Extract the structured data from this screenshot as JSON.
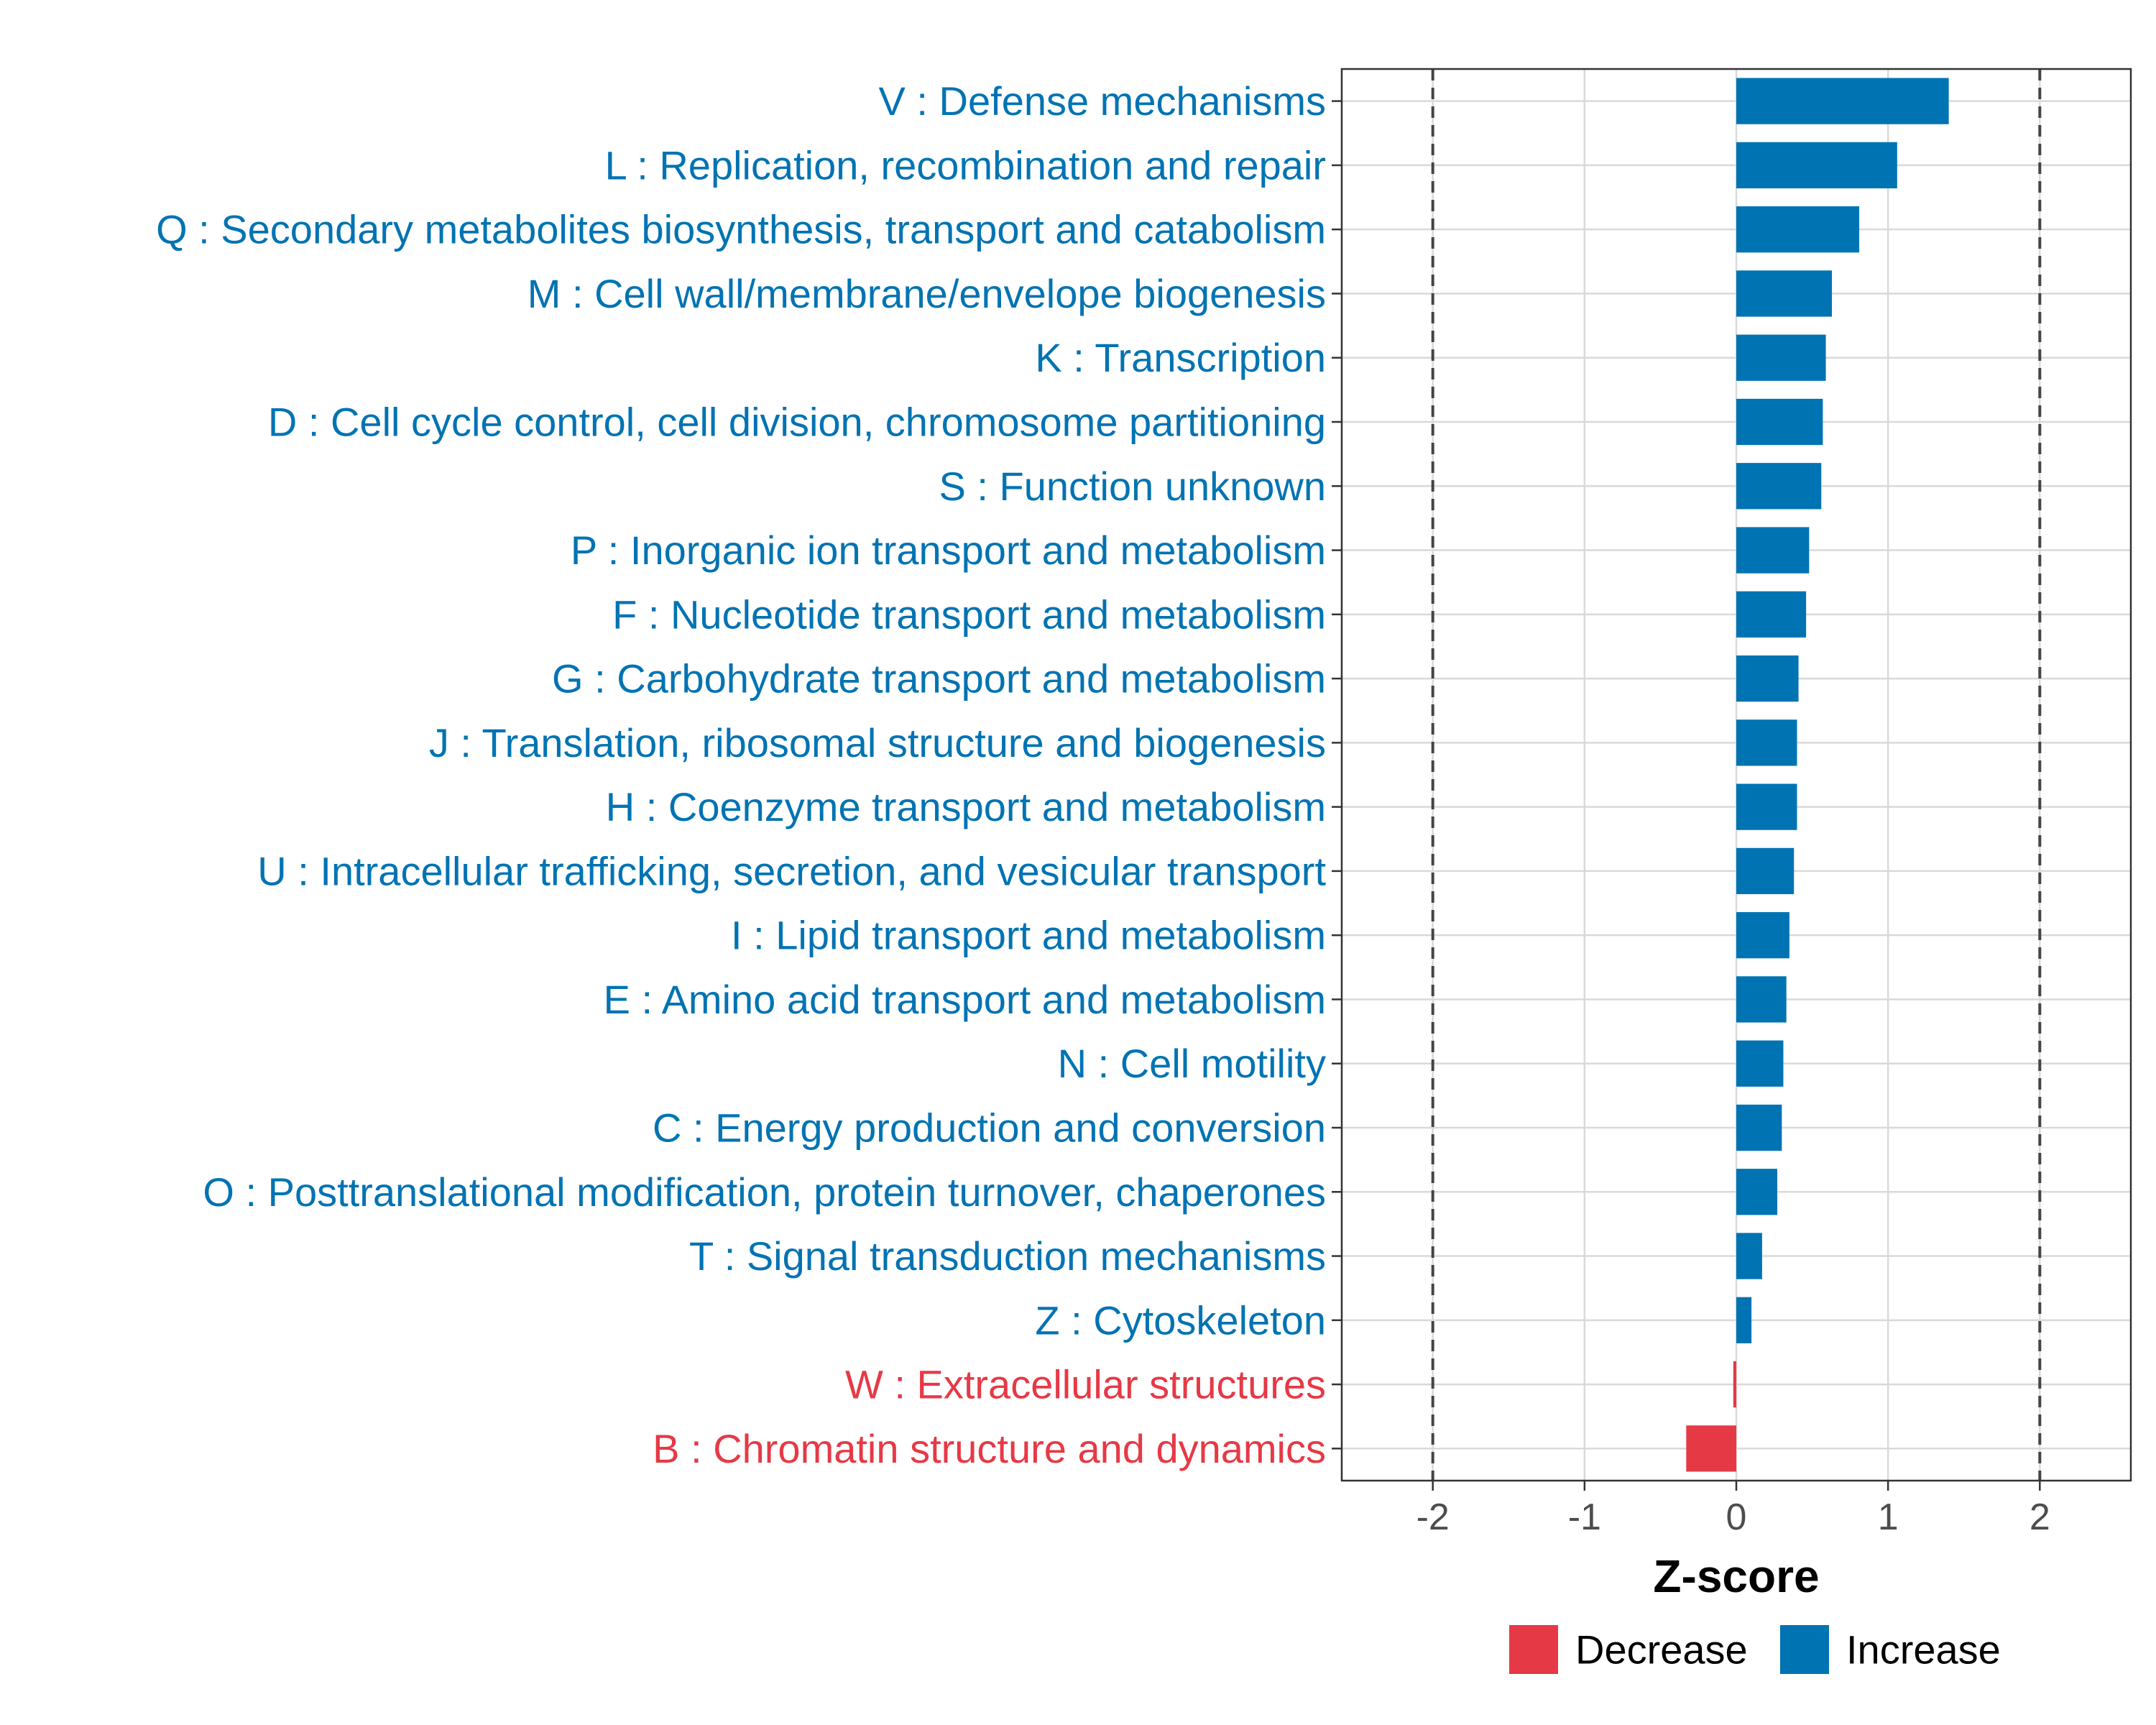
{
  "chart_data": {
    "type": "bar",
    "orientation": "horizontal",
    "title": "",
    "xlabel": "Z-score",
    "ylabel": "",
    "xlim": [
      -2.6,
      2.6
    ],
    "xticks": [
      -2,
      -1,
      0,
      1,
      2
    ],
    "xtick_labels": [
      "-2",
      "-1",
      "0",
      "1",
      "2"
    ],
    "reference_lines": [
      -2,
      2
    ],
    "grid": true,
    "legend_position": "bottom",
    "colors": {
      "Increase": "#0073b3",
      "Decrease": "#e63946"
    },
    "legend": [
      {
        "label": "Decrease",
        "color": "#e63946"
      },
      {
        "label": "Increase",
        "color": "#0073b3"
      }
    ],
    "categories": [
      "V : Defense mechanisms",
      "L : Replication, recombination and repair",
      "Q : Secondary metabolites biosynthesis, transport and catabolism",
      "M : Cell wall/membrane/envelope biogenesis",
      "K : Transcription",
      "D : Cell cycle control, cell division, chromosome partitioning",
      "S : Function unknown",
      "P : Inorganic ion transport and metabolism",
      "F : Nucleotide transport and metabolism",
      "G : Carbohydrate transport and metabolism",
      "J : Translation, ribosomal structure and biogenesis",
      "H : Coenzyme transport and metabolism",
      "U : Intracellular trafficking, secretion, and vesicular transport",
      "I : Lipid transport and metabolism",
      "E : Amino acid transport and metabolism",
      "N : Cell motility",
      "C : Energy production and conversion",
      "O : Posttranslational modification, protein turnover, chaperones",
      "T : Signal transduction mechanisms",
      "Z : Cytoskeleton",
      "W : Extracellular structures",
      "B : Chromatin structure and dynamics"
    ],
    "values": [
      1.4,
      1.06,
      0.81,
      0.63,
      0.59,
      0.57,
      0.56,
      0.48,
      0.46,
      0.41,
      0.4,
      0.4,
      0.38,
      0.35,
      0.33,
      0.31,
      0.3,
      0.27,
      0.17,
      0.1,
      -0.02,
      -0.33
    ],
    "direction": [
      "Increase",
      "Increase",
      "Increase",
      "Increase",
      "Increase",
      "Increase",
      "Increase",
      "Increase",
      "Increase",
      "Increase",
      "Increase",
      "Increase",
      "Increase",
      "Increase",
      "Increase",
      "Increase",
      "Increase",
      "Increase",
      "Increase",
      "Increase",
      "Decrease",
      "Decrease"
    ]
  }
}
